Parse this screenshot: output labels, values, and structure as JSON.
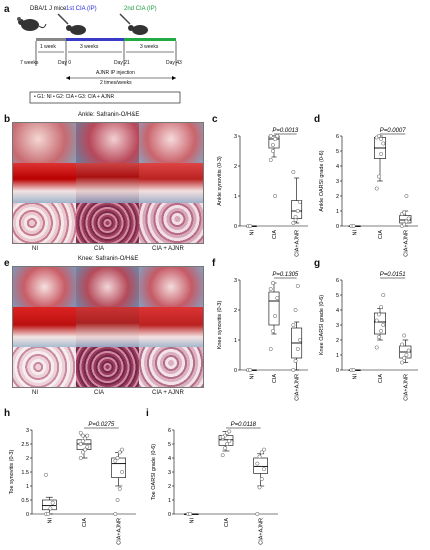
{
  "panel_labels": {
    "a": "a",
    "b": "b",
    "c": "c",
    "d": "d",
    "e": "e",
    "f": "f",
    "g": "g",
    "h": "h",
    "i": "i"
  },
  "schematic": {
    "strain": "DBA/1 J mice",
    "cia1": "1st CIA (IP)",
    "cia2": "2nd CIA (IP)",
    "week1": "1 week",
    "weeks3a": "3 weeks",
    "weeks3b": "3 weeks",
    "t1": "7 weeks",
    "t2": "Day 0",
    "t3": "Day 21",
    "t4": "Day 43",
    "injection_line1": "AJNR IP injection",
    "injection_line2": "2 times/weeks",
    "groups": "• G1: NI    • G2: CIA    • G3: CIA + AJNR",
    "colors": {
      "cia1": "#2b2bd6",
      "cia2": "#1a9a3a",
      "bar_blue": "#3a3ac8",
      "bar_green": "#22aa44"
    }
  },
  "histology_b": {
    "title": "Ankle: Safranin-O/H&E",
    "labels": [
      "NI",
      "CIA",
      "CIA + AJNR"
    ]
  },
  "histology_e": {
    "title": "Knee: Safranin-O/H&E",
    "labels": [
      "NI",
      "CIA",
      "CIA + AJNR"
    ]
  },
  "chart_data": [
    {
      "panel": "c",
      "type": "box",
      "ylabel": "Ankle synovitis (0-3)",
      "pvalue": "P=0.0013",
      "categories": [
        "NI",
        "CIA",
        "CIA+AJNR"
      ],
      "ylim": [
        0,
        3
      ],
      "yticks": [
        0,
        1,
        2,
        3
      ],
      "boxes": [
        {
          "min": 0,
          "q1": 0,
          "median": 0,
          "q3": 0,
          "max": 0
        },
        {
          "min": 2.3,
          "q1": 2.6,
          "median": 2.9,
          "q3": 3.0,
          "max": 3.0
        },
        {
          "min": 0.1,
          "q1": 0.25,
          "median": 0.5,
          "q3": 0.85,
          "max": 1.6
        }
      ],
      "points": [
        [
          0,
          0
        ],
        [
          2.2,
          2.7,
          2.9,
          3.0,
          3.0,
          2.5,
          1.0
        ],
        [
          0.1,
          0.3,
          0.5,
          0.8,
          1.8,
          0.2
        ]
      ]
    },
    {
      "panel": "d",
      "type": "box",
      "ylabel": "Ankle OARSI grade (0-6)",
      "pvalue": "P=0.0007",
      "categories": [
        "NI",
        "CIA",
        "CIA+AJNR"
      ],
      "ylim": [
        0,
        6
      ],
      "yticks": [
        0,
        1,
        2,
        3,
        4,
        5,
        6
      ],
      "boxes": [
        {
          "min": 0,
          "q1": 0,
          "median": 0,
          "q3": 0,
          "max": 0
        },
        {
          "min": 3.0,
          "q1": 4.5,
          "median": 5.2,
          "q3": 5.9,
          "max": 6.0
        },
        {
          "min": 0.0,
          "q1": 0.2,
          "median": 0.4,
          "q3": 0.7,
          "max": 1.0
        }
      ],
      "points": [
        [
          0,
          0
        ],
        [
          2.5,
          3.3,
          4.8,
          5.5,
          5.9,
          6.0,
          5.8
        ],
        [
          0.0,
          0.1,
          0.3,
          0.5,
          0.8,
          0.9,
          2.0
        ]
      ]
    },
    {
      "panel": "f",
      "type": "box",
      "ylabel": "Knee synovitis (0-3)",
      "pvalue": "P=0.1305",
      "categories": [
        "NI",
        "CIA",
        "CIA+AJNR"
      ],
      "ylim": [
        0,
        3
      ],
      "yticks": [
        0,
        1,
        2,
        3
      ],
      "boxes": [
        {
          "min": 0,
          "q1": 0,
          "median": 0,
          "q3": 0,
          "max": 0
        },
        {
          "min": 1.2,
          "q1": 1.5,
          "median": 2.3,
          "q3": 2.6,
          "max": 2.9
        },
        {
          "min": 0.0,
          "q1": 0.4,
          "median": 0.9,
          "q3": 1.4,
          "max": 1.6
        }
      ],
      "points": [
        [
          0,
          0
        ],
        [
          0.7,
          1.3,
          1.8,
          2.4,
          2.7,
          2.9
        ],
        [
          0.0,
          0.3,
          0.7,
          1.0,
          1.5,
          2.0,
          2.8
        ]
      ]
    },
    {
      "panel": "g",
      "type": "box",
      "ylabel": "Knee OARSI grade (0-6)",
      "pvalue": "P=0.0151",
      "categories": [
        "NI",
        "CIA",
        "CIA+AJNR"
      ],
      "ylim": [
        0,
        6
      ],
      "yticks": [
        0,
        1,
        2,
        3,
        4,
        5,
        6
      ],
      "boxes": [
        {
          "min": 0,
          "q1": 0,
          "median": 0,
          "q3": 0,
          "max": 0
        },
        {
          "min": 2.0,
          "q1": 2.4,
          "median": 3.2,
          "q3": 3.8,
          "max": 4.1
        },
        {
          "min": 0.5,
          "q1": 0.8,
          "median": 1.2,
          "q3": 1.6,
          "max": 2.0
        }
      ],
      "points": [
        [
          0,
          0
        ],
        [
          1.5,
          2.2,
          2.6,
          3.0,
          3.3,
          3.7,
          4.2,
          5.0
        ],
        [
          0.5,
          0.8,
          1.0,
          1.3,
          1.7,
          2.3
        ]
      ]
    },
    {
      "panel": "h",
      "type": "box",
      "ylabel": "Toe synovitis (0-3)",
      "pvalue": "P=0.0275",
      "categories": [
        "NI",
        "CIA",
        "CIA+AJNR"
      ],
      "ylim": [
        0,
        3
      ],
      "yticks": [
        0,
        0.5,
        1,
        1.5,
        2,
        2.5,
        3
      ],
      "boxes": [
        {
          "min": 0,
          "q1": 0.15,
          "median": 0.3,
          "q3": 0.5,
          "max": 0.6
        },
        {
          "min": 2.0,
          "q1": 2.3,
          "median": 2.5,
          "q3": 2.65,
          "max": 2.8
        },
        {
          "min": 1.0,
          "q1": 1.3,
          "median": 1.8,
          "q3": 2.0,
          "max": 2.2
        }
      ],
      "points": [
        [
          0,
          0,
          0.2,
          0.4,
          1.4
        ],
        [
          2.0,
          2.2,
          2.3,
          2.4,
          2.5,
          2.6,
          2.7,
          2.8,
          2.9,
          2.8
        ],
        [
          0.0,
          0.5,
          0.9,
          1.5,
          1.9,
          2.0,
          2.2,
          2.3
        ]
      ]
    },
    {
      "panel": "i",
      "type": "box",
      "ylabel": "Toe OARSI grade (0-6)",
      "pvalue": "P=0.0118",
      "categories": [
        "NI",
        "CIA",
        "CIA+AJNR"
      ],
      "ylim": [
        0,
        6
      ],
      "yticks": [
        0,
        1,
        2,
        3,
        4,
        5,
        6
      ],
      "boxes": [
        {
          "min": 0,
          "q1": 0,
          "median": 0,
          "q3": 0,
          "max": 0
        },
        {
          "min": 4.5,
          "q1": 4.9,
          "median": 5.3,
          "q3": 5.6,
          "max": 5.9
        },
        {
          "min": 2.0,
          "q1": 2.9,
          "median": 3.4,
          "q3": 4.0,
          "max": 4.3
        }
      ],
      "points": [
        [
          0,
          0
        ],
        [
          4.2,
          4.7,
          5.0,
          5.2,
          5.4,
          5.6,
          5.8,
          5.9,
          5.5
        ],
        [
          0.0,
          1.9,
          2.5,
          3.2,
          3.6,
          4.1,
          4.4,
          4.6
        ]
      ]
    }
  ]
}
